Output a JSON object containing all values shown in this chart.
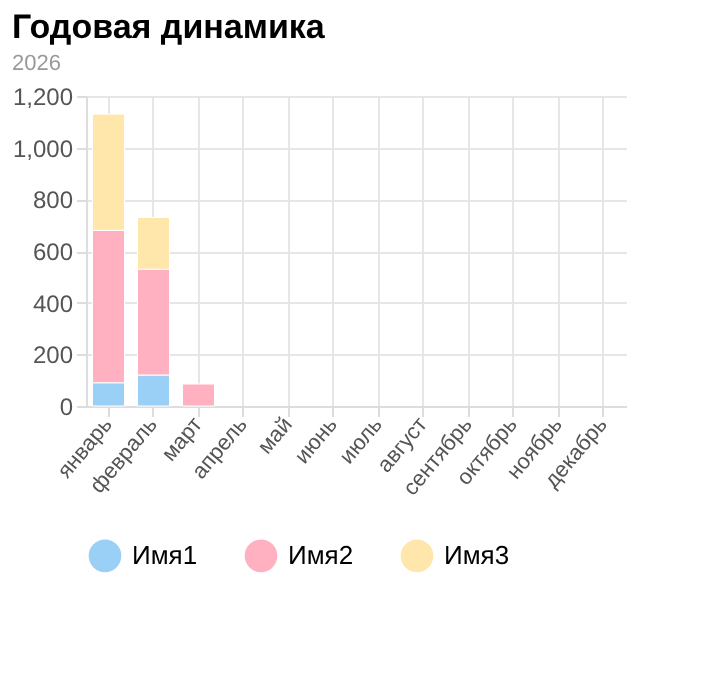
{
  "chart_data": {
    "type": "bar",
    "title": "Годовая динамика",
    "subtitle": "2026",
    "categories": [
      "январь",
      "февраль",
      "март",
      "апрель",
      "май",
      "июнь",
      "июль",
      "август",
      "сентябрь",
      "октябрь",
      "ноябрь",
      "декабрь"
    ],
    "series": [
      {
        "name": "Имя1",
        "color": "#9ad0f5",
        "values": [
          90,
          120,
          null,
          null,
          null,
          null,
          null,
          null,
          null,
          null,
          null,
          null
        ]
      },
      {
        "name": "Имя2",
        "color": "#ffb1c1",
        "values": [
          590,
          410,
          85,
          null,
          null,
          null,
          null,
          null,
          null,
          null,
          null,
          null
        ]
      },
      {
        "name": "Имя3",
        "color": "#ffe6aa",
        "values": [
          450,
          200,
          null,
          null,
          null,
          null,
          null,
          null,
          null,
          null,
          null,
          null
        ]
      }
    ],
    "stacked": true,
    "ylim": [
      0,
      1200
    ],
    "yticks": [
      0,
      200,
      400,
      600,
      800,
      {
        "value": 1000,
        "label": "1,000"
      },
      {
        "value": 1200,
        "label": "1,200"
      }
    ],
    "grid": true,
    "legend": "bottom"
  }
}
